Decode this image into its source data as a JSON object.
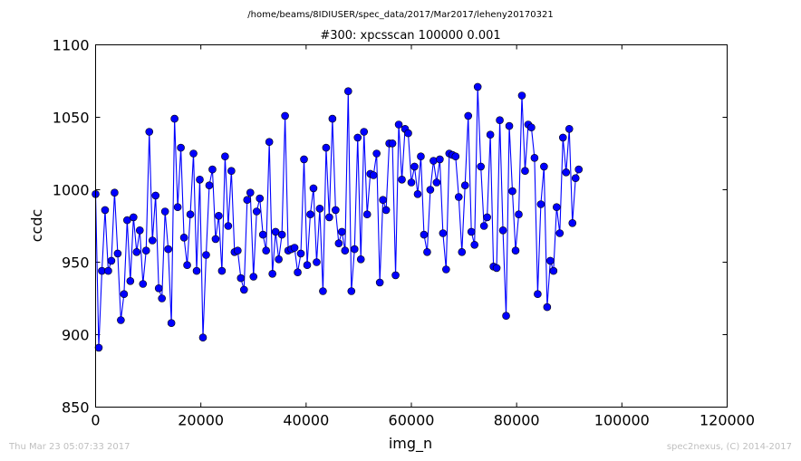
{
  "footer": {
    "timestamp": "Thu Mar 23 05:07:33 2017",
    "credit": "spec2nexus, (C) 2014-2017"
  },
  "chart_data": {
    "type": "line",
    "suptitle": "/home/beams/8IDIUSER/spec_data/2017/Mar2017/leheny20170321",
    "title": "#300: xpcsscan 100000 0.001",
    "xlabel": "img_n",
    "ylabel": "ccdc",
    "xlim": [
      0,
      120000
    ],
    "ylim": [
      850,
      1100
    ],
    "xticks": [
      0,
      20000,
      40000,
      60000,
      80000,
      100000,
      120000
    ],
    "yticks": [
      850,
      900,
      950,
      1000,
      1050,
      1100
    ],
    "xtick_labels": [
      "0",
      "20000",
      "40000",
      "60000",
      "80000",
      "100000",
      "120000"
    ],
    "ytick_labels": [
      "850",
      "900",
      "950",
      "1000",
      "1050",
      "1100"
    ],
    "grid": false,
    "marker": "circle",
    "color": "#0000ff",
    "series": [
      {
        "x_start": 0,
        "x_step": 600,
        "values": [
          997,
          891,
          944,
          986,
          944,
          951,
          998,
          956,
          910,
          928,
          979,
          937,
          981,
          957,
          972,
          935,
          958,
          1040,
          965,
          996,
          932,
          925,
          985,
          959,
          908,
          1049,
          988,
          1029,
          967,
          948,
          983,
          1025,
          944,
          1007,
          898,
          955,
          1003,
          1014,
          966,
          982,
          944,
          1023,
          975,
          1013,
          957,
          958,
          939,
          931,
          993,
          998,
          940,
          985,
          994,
          969,
          958,
          1033,
          942,
          971,
          952,
          969,
          1051,
          958,
          959,
          960,
          943,
          956,
          1021,
          948,
          983,
          1001,
          950,
          987,
          930,
          1029,
          981,
          1049,
          986,
          963,
          971,
          958,
          1068,
          930,
          959,
          1036,
          952,
          1040,
          983,
          1011,
          1010,
          1025,
          936,
          993,
          986,
          1032,
          1032,
          941,
          1045,
          1007,
          1042,
          1039,
          1005,
          1016,
          997,
          1023,
          969,
          957,
          1000,
          1020,
          1005,
          1021,
          970,
          945,
          1025,
          1024,
          1023,
          995,
          957,
          1003,
          1051,
          971,
          962,
          1071,
          1016,
          975,
          981,
          1038,
          947,
          946,
          1048,
          972,
          913,
          1044,
          999,
          958,
          983,
          1065,
          1013,
          1045,
          1043,
          1022,
          928,
          990,
          1016,
          919,
          951,
          944,
          988,
          970,
          1036,
          1012,
          1042,
          977,
          1008,
          1014
        ]
      }
    ]
  }
}
